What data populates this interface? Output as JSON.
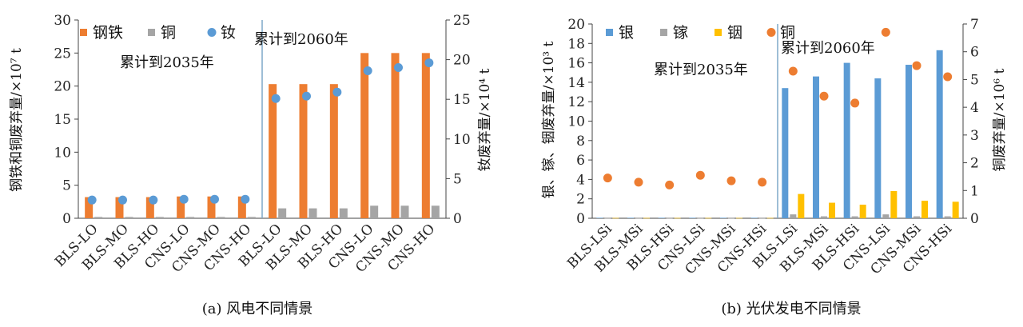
{
  "chart_data": [
    {
      "type": "bar",
      "caption": "(a) 风电不同情景",
      "categories": [
        "BLS-LO",
        "BLS-MO",
        "BLS-HO",
        "CNS-LO",
        "CNS-MO",
        "CNS-HO",
        "BLS-LO",
        "BLS-MO",
        "BLS-HO",
        "CNS-LO",
        "CNS-MO",
        "CNS-HO"
      ],
      "group_labels": [
        "累计到2035年",
        "累计到2060年"
      ],
      "ylabel": "钢铁和铜废弃量/×10⁷ t",
      "y2label": "钕废弃量/×10⁴ t",
      "ylim": [
        0,
        30
      ],
      "y2lim": [
        0,
        25
      ],
      "yticks": [
        0,
        5,
        10,
        15,
        20,
        25,
        30
      ],
      "y2ticks": [
        0,
        5,
        10,
        15,
        20,
        25
      ],
      "legend": "top-left",
      "series": [
        {
          "name": "钢铁",
          "kind": "bar",
          "axis": "left",
          "color": "#ED7D31",
          "values": [
            3.2,
            3.2,
            3.2,
            3.3,
            3.3,
            3.3,
            20.3,
            20.3,
            20.3,
            25.0,
            25.0,
            25.0
          ]
        },
        {
          "name": "铜",
          "kind": "bar",
          "axis": "left",
          "color": "#A5A5A5",
          "values": [
            0.2,
            0.2,
            0.2,
            0.2,
            0.2,
            0.2,
            1.5,
            1.5,
            1.5,
            1.9,
            1.9,
            1.9
          ]
        },
        {
          "name": "钕",
          "kind": "marker",
          "axis": "right",
          "color": "#5B9BD5",
          "values": [
            2.3,
            2.3,
            2.3,
            2.4,
            2.4,
            2.4,
            15.1,
            15.4,
            15.9,
            18.6,
            19.0,
            19.6
          ]
        }
      ]
    },
    {
      "type": "bar",
      "caption": "(b) 光伏发电不同情景",
      "categories": [
        "BLS-LSi",
        "BLS-MSi",
        "BLS-HSi",
        "CNS-LSi",
        "CNS-MSi",
        "CNS-HSi",
        "BLS-LSi",
        "BLS-MSi",
        "BLS-HSi",
        "CNS-LSi",
        "CNS-MSi",
        "CNS-HSi"
      ],
      "group_labels": [
        "累计到2035年",
        "累计到2060年"
      ],
      "ylabel": "银、镓、铟废弃量/×10³ t",
      "y2label": "铜废弃量/×10⁶ t",
      "ylim": [
        0,
        20
      ],
      "y2lim": [
        0,
        7
      ],
      "yticks": [
        0,
        2,
        4,
        6,
        8,
        10,
        12,
        14,
        16,
        18,
        20
      ],
      "y2ticks": [
        0,
        1,
        2,
        3,
        4,
        5,
        6,
        7
      ],
      "legend": "top-left",
      "series": [
        {
          "name": "银",
          "kind": "bar",
          "axis": "left",
          "color": "#5B9BD5",
          "values": [
            0.05,
            0.05,
            0.05,
            0.05,
            0.05,
            0.05,
            13.4,
            14.6,
            16.0,
            14.4,
            15.8,
            17.3
          ]
        },
        {
          "name": "镓",
          "kind": "bar",
          "axis": "left",
          "color": "#A5A5A5",
          "values": [
            0.02,
            0.02,
            0.02,
            0.02,
            0.02,
            0.02,
            0.4,
            0.2,
            0.2,
            0.4,
            0.2,
            0.2
          ]
        },
        {
          "name": "铟",
          "kind": "bar",
          "axis": "left",
          "color": "#FFC000",
          "values": [
            0.03,
            0.03,
            0.03,
            0.03,
            0.03,
            0.03,
            2.5,
            1.6,
            1.4,
            2.8,
            1.8,
            1.7
          ]
        },
        {
          "name": "铜",
          "kind": "marker",
          "axis": "right",
          "color": "#ED7D31",
          "values": [
            1.45,
            1.3,
            1.2,
            1.55,
            1.35,
            1.3,
            5.3,
            4.4,
            4.15,
            6.7,
            5.5,
            5.1
          ]
        }
      ]
    }
  ]
}
